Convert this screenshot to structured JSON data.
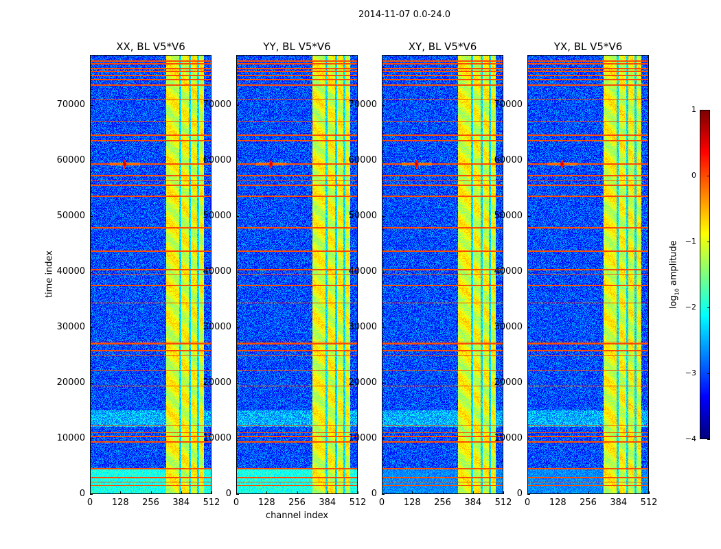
{
  "chart_data": {
    "type": "heatmap",
    "title": "2014-11-07 0.0-24.0",
    "xlabel": "channel index",
    "ylabel": "time index",
    "xlim": [
      0,
      512
    ],
    "ylim": [
      0,
      79000
    ],
    "xticks": [
      "0",
      "128",
      "256",
      "384",
      "512"
    ],
    "xtick_values": [
      0,
      128,
      256,
      384,
      512
    ],
    "yticks": [
      "0",
      "10000",
      "20000",
      "30000",
      "40000",
      "50000",
      "60000",
      "70000"
    ],
    "ytick_values": [
      0,
      10000,
      20000,
      30000,
      40000,
      50000,
      60000,
      70000
    ],
    "panels": [
      {
        "title": "XX, BL V5*V6",
        "low_time_level": -2.0
      },
      {
        "title": "YY, BL V5*V6",
        "low_time_level": -2.0
      },
      {
        "title": "XY, BL V5*V6",
        "low_time_level": -2.7
      },
      {
        "title": "YX, BL V5*V6",
        "low_time_level": -2.7
      }
    ],
    "background_level": -3.0,
    "rfi_time_rows": [
      1500,
      2100,
      2900,
      4500,
      9300,
      10300,
      11000,
      12200,
      19400,
      22200,
      24800,
      25700,
      27000,
      27300,
      34300,
      37500,
      39500,
      40300,
      43600,
      47800,
      53500,
      55500,
      56300,
      57200,
      59300,
      63500,
      64500,
      66900,
      71000,
      73500,
      74500,
      75200,
      76000,
      76500,
      77300,
      77800
    ],
    "rfi_level": 0.0,
    "band_channels": [
      320,
      480
    ],
    "band_level": -1.0,
    "band_gaps": [
      378,
      420,
      455
    ],
    "point_source": {
      "channel": 145,
      "time": 59300,
      "level": 0.8
    },
    "colorbar": {
      "label": "log10 amplitude",
      "label_main": "log",
      "label_sub": "10",
      "label_rest": " amplitude",
      "range": [
        -4,
        1
      ],
      "ticks": [
        "−4",
        "−3",
        "−2",
        "−1",
        "0",
        "1"
      ],
      "tick_values": [
        -4,
        -3,
        -2,
        -1,
        0,
        1
      ],
      "colormap": "jet"
    }
  }
}
